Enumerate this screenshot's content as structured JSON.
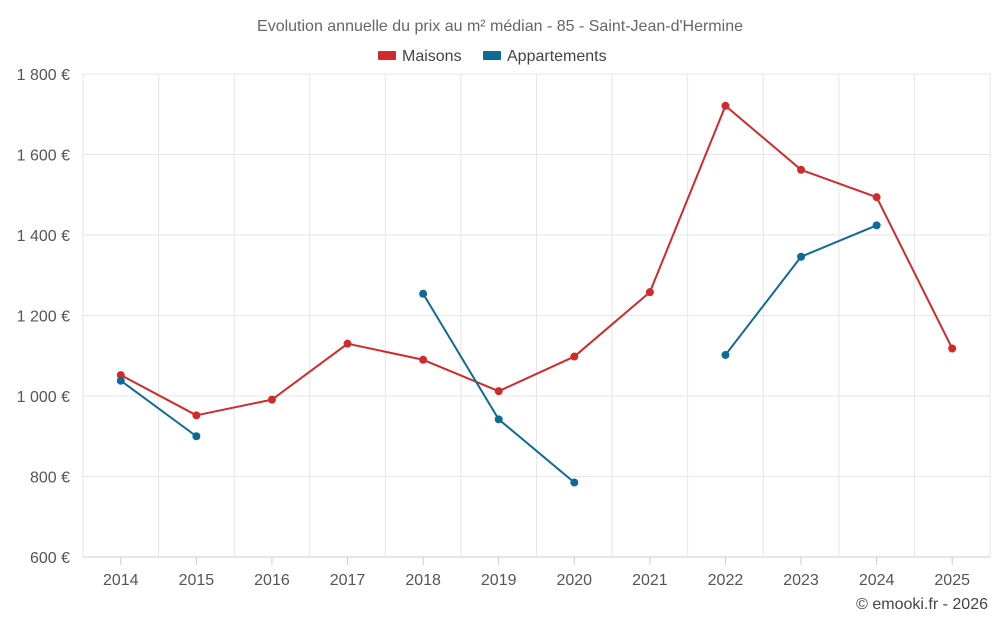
{
  "chart_data": {
    "type": "line",
    "title": "Evolution annuelle du prix au m² médian - 85 - Saint-Jean-d'Hermine",
    "xlabel": "",
    "ylabel": "",
    "categories": [
      "2014",
      "2015",
      "2016",
      "2017",
      "2018",
      "2019",
      "2020",
      "2021",
      "2022",
      "2023",
      "2024",
      "2025"
    ],
    "ylim": [
      600,
      1800
    ],
    "yticks": [
      600,
      800,
      1000,
      1200,
      1400,
      1600,
      1800
    ],
    "ytick_labels": [
      "600 €",
      "800 €",
      "1 000 €",
      "1 200 €",
      "1 400 €",
      "1 600 €",
      "1 800 €"
    ],
    "grid": true,
    "legend_position": "top-center",
    "series": [
      {
        "name": "Maisons",
        "color": "#d12a2a",
        "values": [
          1052,
          952,
          991,
          1130,
          1090,
          1012,
          1098,
          1258,
          1721,
          1562,
          1494,
          1118
        ]
      },
      {
        "name": "Appartements",
        "color": "#0f6a97",
        "values": [
          1038,
          900,
          null,
          null,
          1254,
          942,
          785,
          null,
          1102,
          1346,
          1424,
          null
        ]
      }
    ]
  },
  "credit": "© emooki.fr - 2026"
}
